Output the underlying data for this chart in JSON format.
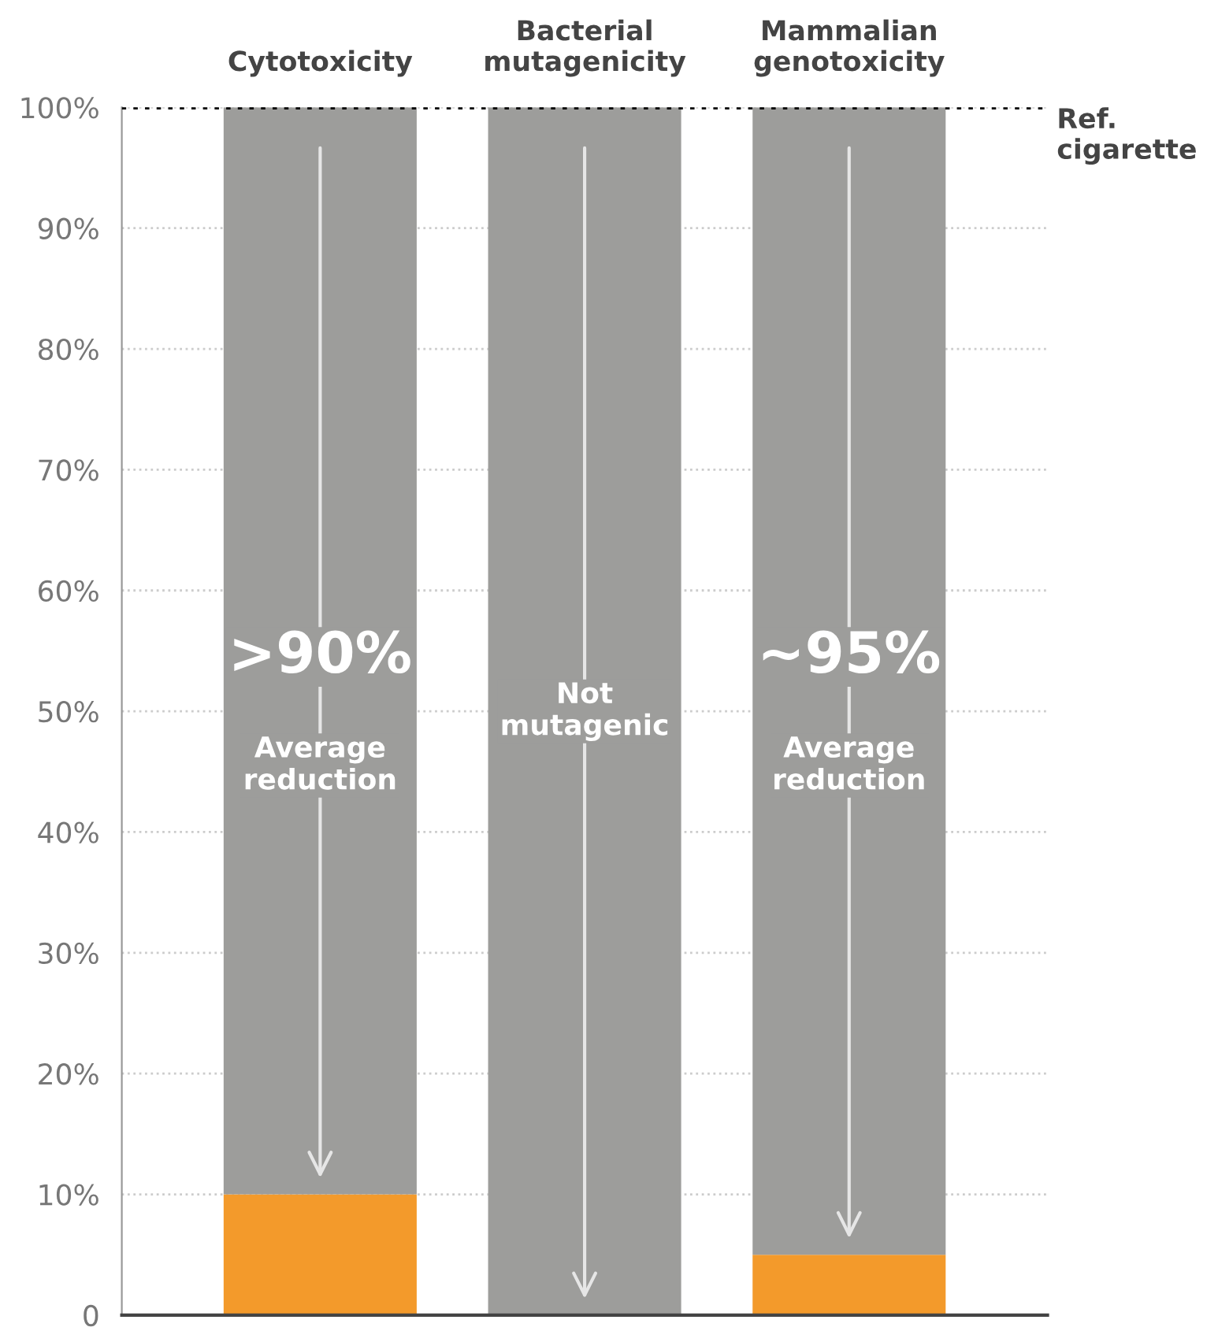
{
  "chart_data": {
    "type": "bar",
    "stacked": true,
    "categories": [
      "Cytotoxicity",
      "Bacterial\nmutagenicity",
      "Mammalian\ngenotoxicity"
    ],
    "series": [
      {
        "color": "#f39a2b",
        "values": [
          10,
          0,
          5
        ]
      },
      {
        "color": "#9d9d9b",
        "values": [
          90,
          100,
          95
        ]
      }
    ],
    "ylim": [
      0,
      100
    ],
    "yticks": [
      {
        "value": 0,
        "label": "0"
      },
      {
        "value": 10,
        "label": "10%"
      },
      {
        "value": 20,
        "label": "20%"
      },
      {
        "value": 30,
        "label": "30%"
      },
      {
        "value": 40,
        "label": "40%"
      },
      {
        "value": 50,
        "label": "50%"
      },
      {
        "value": 60,
        "label": "60%"
      },
      {
        "value": 70,
        "label": "70%"
      },
      {
        "value": 80,
        "label": "80%"
      },
      {
        "value": 90,
        "label": "90%"
      },
      {
        "value": 100,
        "label": "100%"
      }
    ],
    "grid": "y",
    "ref_lines": [
      {
        "axis": "y",
        "value": 100,
        "label": "Ref.\ncigarette",
        "color": "#000000",
        "line_style": "dotted"
      }
    ],
    "annotations": [
      ">90%",
      "Average\nreduction",
      "Not\nmutagenic",
      "~95%",
      "Average\nreduction"
    ]
  }
}
